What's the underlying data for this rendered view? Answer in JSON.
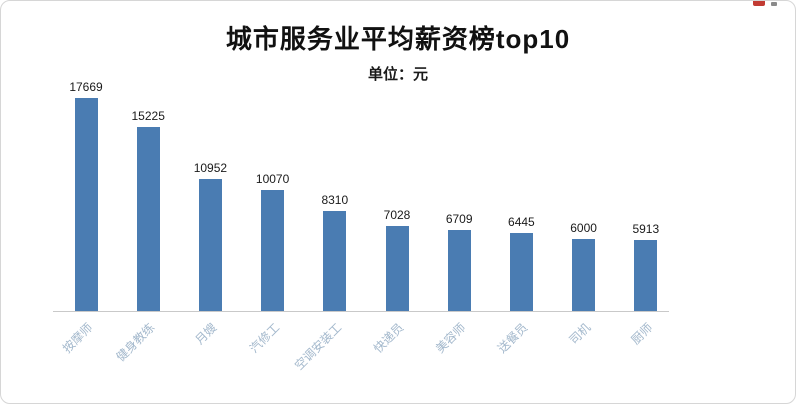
{
  "header": {
    "title": "城市服务业平均薪资榜top10",
    "subtitle": "单位：元"
  },
  "chart_data": {
    "type": "bar",
    "title": "城市服务业平均薪资榜top10",
    "subtitle": "单位：元",
    "categories": [
      "按摩师",
      "健身教练",
      "月嫂",
      "汽修工",
      "空调安装工",
      "快递员",
      "美容师",
      "送餐员",
      "司机",
      "厨师"
    ],
    "values": [
      17669,
      15225,
      10952,
      10070,
      8310,
      7028,
      6709,
      6445,
      6000,
      5913
    ],
    "xlabel": "",
    "ylabel": "",
    "ylim": [
      0,
      18000
    ],
    "grid": false,
    "legend": false,
    "bar_color": "#4a7cb2",
    "category_label_color": "#a3b8cc",
    "value_label_color": "#1a1a1a",
    "axis_line_color": "#c9c9c9"
  }
}
